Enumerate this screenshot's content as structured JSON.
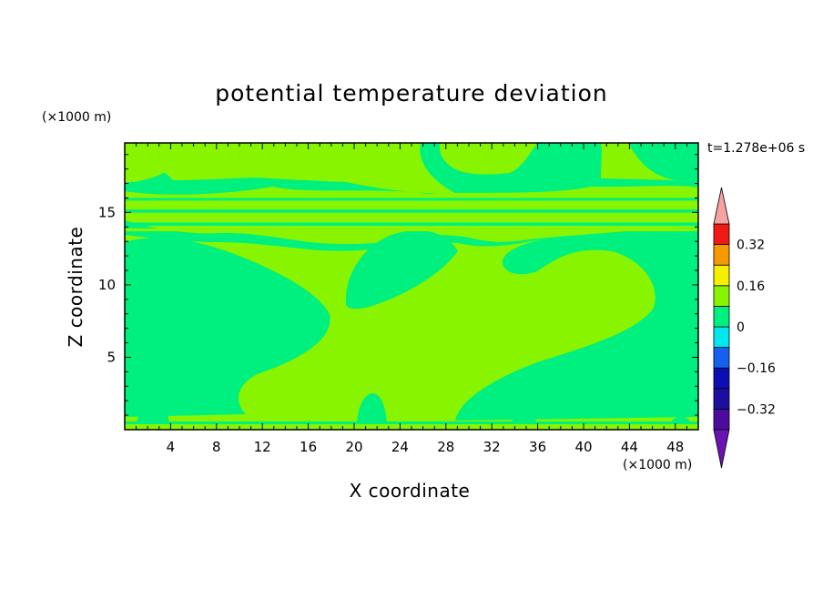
{
  "title": "potential temperature deviation",
  "xlabel": "X coordinate",
  "ylabel": "Z coordinate",
  "x_unit": "(×1000 m)",
  "y_unit": "(×1000 m)",
  "timestamp": "t=1.278e+06 s",
  "chart_data": {
    "type": "heatmap",
    "title": "potential temperature deviation",
    "xlabel": "X coordinate",
    "ylabel": "Z coordinate",
    "xlim": [
      0,
      50
    ],
    "ylim": [
      0,
      19.8
    ],
    "x_ticks": [
      4,
      8,
      12,
      16,
      20,
      24,
      28,
      32,
      36,
      40,
      44,
      48
    ],
    "y_ticks": [
      5,
      10,
      15
    ],
    "colorbar": {
      "levels": [
        -0.4,
        -0.32,
        -0.24,
        -0.16,
        -0.08,
        0,
        0.08,
        0.16,
        0.24,
        0.32,
        0.4
      ],
      "labeled_ticks": [
        -0.32,
        -0.16,
        0,
        0.16,
        0.32
      ],
      "tick_labels": [
        "−0.32",
        "−0.16",
        "0",
        "0.16",
        "0.32"
      ],
      "colors": [
        "#4b0c9e",
        "#1c0fa0",
        "#0d0db4",
        "#1560ee",
        "#00e8ee",
        "#00f07f",
        "#88f400",
        "#f6f000",
        "#f59a00",
        "#f01a14"
      ],
      "under_color": "#6a13b1",
      "over_color": "#f7a2a2"
    },
    "field_range": [
      -0.08,
      0.08
    ],
    "field_colors": {
      "negative": "#00f07f",
      "positive": "#88f400"
    }
  }
}
